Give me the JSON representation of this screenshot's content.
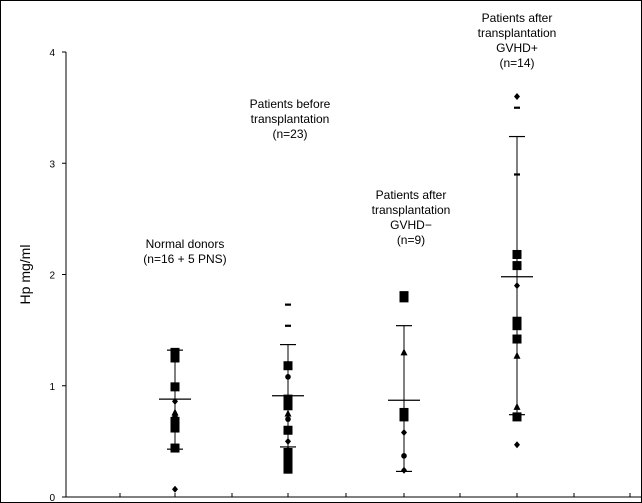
{
  "chart_data": {
    "type": "scatter",
    "ylabel": "Hp mg/ml",
    "ylim": [
      0,
      4
    ],
    "yticks": [
      "0",
      "1",
      "2",
      "3",
      "4"
    ],
    "grid": false,
    "groups": [
      {
        "label_lines": [
          "Normal donors",
          "(n=16 + 5 PNS)"
        ],
        "mean": 0.88,
        "sd_upper": 1.32,
        "sd_lower": 0.43,
        "points": [
          {
            "y": 0.07,
            "m": "diamond"
          },
          {
            "y": 0.44,
            "m": "square"
          },
          {
            "y": 0.62,
            "m": "square"
          },
          {
            "y": 0.65,
            "m": "square"
          },
          {
            "y": 0.68,
            "m": "square"
          },
          {
            "y": 0.72,
            "m": "dot"
          },
          {
            "y": 0.76,
            "m": "triangle"
          },
          {
            "y": 0.86,
            "m": "diamond"
          },
          {
            "y": 0.99,
            "m": "square"
          },
          {
            "y": 1.22,
            "m": "dash"
          },
          {
            "y": 1.25,
            "m": "square"
          },
          {
            "y": 1.3,
            "m": "square"
          }
        ]
      },
      {
        "label_lines": [
          "Patients before",
          "transplantation",
          "(n=23)"
        ],
        "mean": 0.91,
        "sd_upper": 1.37,
        "sd_lower": 0.45,
        "points": [
          {
            "y": 0.25,
            "m": "square"
          },
          {
            "y": 0.3,
            "m": "square"
          },
          {
            "y": 0.35,
            "m": "square"
          },
          {
            "y": 0.4,
            "m": "square"
          },
          {
            "y": 0.42,
            "m": "dot"
          },
          {
            "y": 0.5,
            "m": "diamond"
          },
          {
            "y": 0.6,
            "m": "square"
          },
          {
            "y": 0.7,
            "m": "dot"
          },
          {
            "y": 0.75,
            "m": "triangle"
          },
          {
            "y": 0.82,
            "m": "square"
          },
          {
            "y": 0.88,
            "m": "square"
          },
          {
            "y": 1.08,
            "m": "dot"
          },
          {
            "y": 1.18,
            "m": "square"
          },
          {
            "y": 1.54,
            "m": "dash"
          },
          {
            "y": 1.73,
            "m": "dash"
          }
        ]
      },
      {
        "label_lines": [
          "Patients after",
          "transplantation",
          "GVHD−",
          "(n=9)"
        ],
        "mean": 0.87,
        "sd_upper": 1.54,
        "sd_lower": 0.23,
        "points": [
          {
            "y": 0.24,
            "m": "diamond"
          },
          {
            "y": 0.37,
            "m": "dot"
          },
          {
            "y": 0.58,
            "m": "diamond"
          },
          {
            "y": 0.72,
            "m": "square"
          },
          {
            "y": 0.76,
            "m": "square"
          },
          {
            "y": 1.3,
            "m": "triangle"
          },
          {
            "y": 1.79,
            "m": "square"
          },
          {
            "y": 1.81,
            "m": "square"
          }
        ]
      },
      {
        "label_lines": [
          "Patients after",
          "transplantation",
          "GVHD+",
          "(n=14)"
        ],
        "mean": 1.98,
        "sd_upper": 3.24,
        "sd_lower": 0.74,
        "points": [
          {
            "y": 0.47,
            "m": "diamond"
          },
          {
            "y": 0.72,
            "m": "square"
          },
          {
            "y": 0.81,
            "m": "triangle"
          },
          {
            "y": 1.27,
            "m": "triangle"
          },
          {
            "y": 1.42,
            "m": "square"
          },
          {
            "y": 1.54,
            "m": "square"
          },
          {
            "y": 1.58,
            "m": "square"
          },
          {
            "y": 1.9,
            "m": "diamond"
          },
          {
            "y": 2.08,
            "m": "square"
          },
          {
            "y": 2.18,
            "m": "square"
          },
          {
            "y": 2.9,
            "m": "dash"
          },
          {
            "y": 3.5,
            "m": "dash"
          },
          {
            "y": 3.6,
            "m": "diamond"
          }
        ]
      }
    ]
  }
}
